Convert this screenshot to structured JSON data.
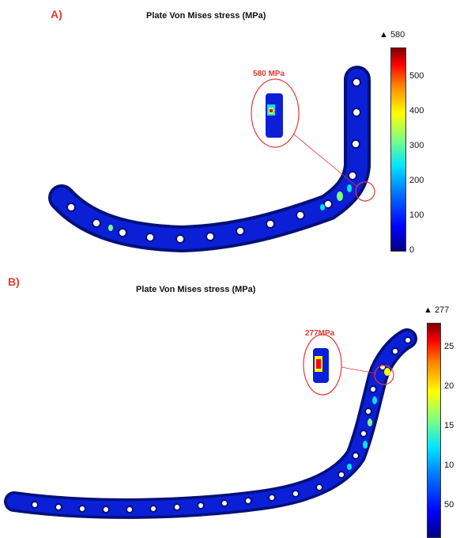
{
  "panel_a": {
    "label": "A)",
    "title": "Plate Von Mises stress (MPa)",
    "colorbar": {
      "max_label": "▲ 580",
      "ticks": [
        "500",
        "400",
        "300",
        "200",
        "100",
        "0"
      ]
    },
    "callout_label": "580 MPa"
  },
  "panel_b": {
    "label": "B)",
    "title": "Plate Von Mises stress (MPa)",
    "colorbar": {
      "max_label": "▲ 277",
      "ticks": [
        "25",
        "20",
        "15",
        "10",
        "50"
      ]
    },
    "callout_label": "277MPa"
  },
  "colors": {
    "accent": "#e53935",
    "plate_blue": "#0a1fd6",
    "plate_dark": "#04107a",
    "hole": "#ffffff"
  }
}
